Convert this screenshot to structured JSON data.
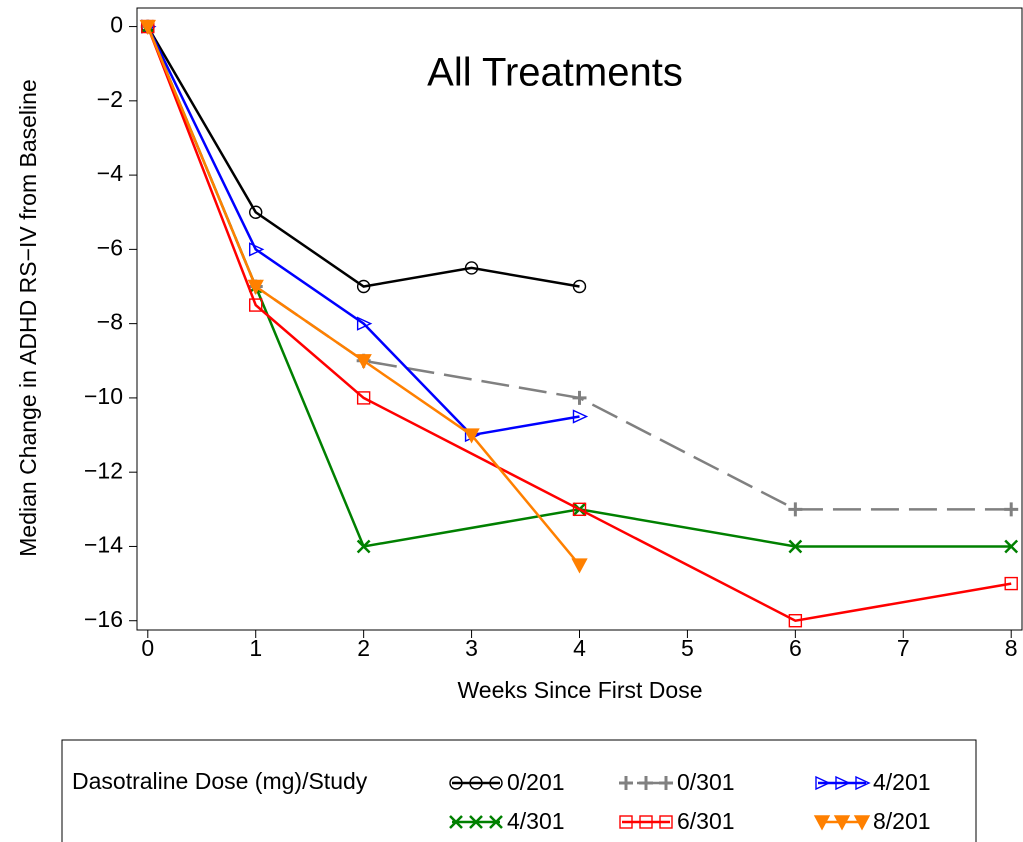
{
  "chart_data": {
    "type": "line",
    "title": "All Treatments",
    "title_color": "#7030a0",
    "x_label": "Weeks Since First Dose",
    "y_label": "Median Change in ADHD RS−IV from Baseline",
    "xlim": [
      -0.1,
      8.1
    ],
    "xticks": [
      0,
      1,
      2,
      3,
      4,
      5,
      6,
      7,
      8
    ],
    "ylim": [
      -16.25,
      0.5
    ],
    "yticks": [
      {
        "value": 0,
        "label": "0"
      },
      {
        "value": -2,
        "label": "−2"
      },
      {
        "value": -4,
        "label": "−4"
      },
      {
        "value": -6,
        "label": "−6"
      },
      {
        "value": -8,
        "label": "−8"
      },
      {
        "value": -10,
        "label": "−10"
      },
      {
        "value": -12,
        "label": "−12"
      },
      {
        "value": -14,
        "label": "−14"
      },
      {
        "value": -16,
        "label": "−16"
      }
    ],
    "legend_title": "Dasotraline Dose (mg)/Study",
    "series": [
      {
        "name": "0/201",
        "color": "#000000",
        "marker": "circle",
        "dashed": false,
        "x": [
          0,
          1,
          2,
          3,
          4
        ],
        "values": [
          0,
          -5,
          -7,
          -6.5,
          -7
        ]
      },
      {
        "name": "0/301",
        "color": "#808080",
        "marker": "plus",
        "dashed": true,
        "x": [
          0,
          1,
          2,
          4,
          6,
          8
        ],
        "values": [
          0,
          -7,
          -9,
          -10,
          -13,
          -13
        ]
      },
      {
        "name": "4/201",
        "color": "#0000ff",
        "marker": "triangle-right",
        "dashed": false,
        "x": [
          0,
          1,
          2,
          3,
          4
        ],
        "values": [
          0,
          -6,
          -8,
          -11,
          -10.5
        ]
      },
      {
        "name": "4/301",
        "color": "#008000",
        "marker": "x",
        "dashed": false,
        "x": [
          0,
          1,
          2,
          4,
          6,
          8
        ],
        "values": [
          0,
          -7,
          -14,
          -13,
          -14,
          -14
        ]
      },
      {
        "name": "6/301",
        "color": "#ff0000",
        "marker": "square",
        "dashed": false,
        "x": [
          0,
          1,
          2,
          4,
          6,
          8
        ],
        "values": [
          0,
          -7.5,
          -10,
          -13,
          -16,
          -15
        ]
      },
      {
        "name": "8/201",
        "color": "#ff8000",
        "marker": "triangle-down",
        "dashed": false,
        "x": [
          0,
          1,
          2,
          3,
          4
        ],
        "values": [
          0,
          -7,
          -9,
          -11,
          -14.5
        ]
      }
    ]
  }
}
